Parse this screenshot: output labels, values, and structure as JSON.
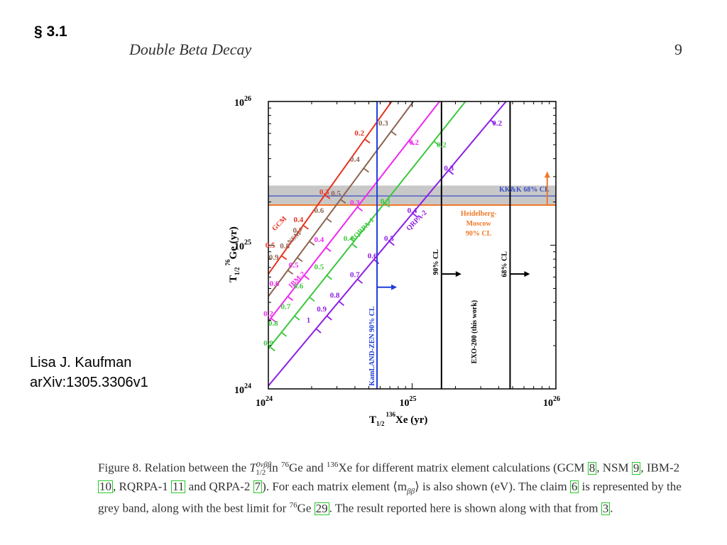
{
  "header": {
    "section": "§ 3.1",
    "running_title": "Double Beta Decay",
    "page_number": "9"
  },
  "author": {
    "name": "Lisa J. Kaufman",
    "arxiv": "arXiv:1305.3306v1"
  },
  "figure": {
    "caption": {
      "p1": "Figure 8.  Relation between the ",
      "t_half": "T",
      "t_sup": "0νββ",
      "t_sub": "1/2",
      "p2": " in ",
      "ge_sup": "76",
      "p3": "Ge and ",
      "xe_sup": "136",
      "p4": "Xe for different matrix element calculations (GCM ",
      "r8": "8",
      "p5": ", NSM ",
      "r9": "9",
      "p6": ", IBM-2 ",
      "r10": "10",
      "p7": ", RQRPA-1 ",
      "r11": "11",
      "p8": " and QRPA-2 ",
      "r7": "7",
      "p9": "). For each matrix element ⟨m",
      "m_sub": "ββ",
      "p10": "⟩ is also shown (eV). The claim ",
      "r6": "6",
      "p11": " is represented by the grey band, along with the best limit for ",
      "ge_sup2": "76",
      "p12": "Ge ",
      "r29": "29",
      "p13": ". The result reported here is shown along with that from ",
      "r3": "3",
      "p14": "."
    }
  },
  "chart_data": {
    "type": "line",
    "xscale": "log",
    "yscale": "log",
    "xlim": [
      1e+24,
      1e+26
    ],
    "ylim": [
      1e+24,
      1e+26
    ],
    "xlabel": {
      "t": "T",
      "sub": "1/2",
      "sup": "136",
      "rest": "Xe (yr)"
    },
    "ylabel": {
      "t": "T",
      "sub": "1/2",
      "sup": "76",
      "rest": "Ge (yr)"
    },
    "x_ticks": [
      {
        "label": "10",
        "exp": "24"
      },
      {
        "label": "10",
        "exp": "25"
      },
      {
        "label": "10",
        "exp": "26"
      }
    ],
    "y_ticks": [
      {
        "label": "10",
        "exp": "24"
      },
      {
        "label": "10",
        "exp": "25"
      },
      {
        "label": "10",
        "exp": "26"
      }
    ],
    "series": [
      {
        "name": "GCM",
        "color": "#e8321e",
        "points": [
          [
            1e+24,
            6.3e+24
          ],
          [
            7.2e+24,
            1e+26
          ]
        ],
        "labels": [
          {
            "text": "0.2",
            "x": 4.3e+24,
            "y": 5.8e+25
          },
          {
            "text": "0.3",
            "x": 2.45e+24,
            "y": 2.25e+25
          },
          {
            "text": "0.4",
            "x": 1.62e+24,
            "y": 1.45e+25
          },
          {
            "text": "0.5",
            "x": 1.03e+24,
            "y": 9.6e+24
          }
        ]
      },
      {
        "name": "NSM",
        "color": "#8b6450",
        "points": [
          [
            1e+24,
            4.4e+24
          ],
          [
            1.02e+25,
            1e+26
          ]
        ],
        "labels": [
          {
            "text": "0.3",
            "x": 6.3e+24,
            "y": 6.8e+25
          },
          {
            "text": "0.4",
            "x": 4e+24,
            "y": 3.8e+25
          },
          {
            "text": "0.5",
            "x": 2.95e+24,
            "y": 2.2e+25
          },
          {
            "text": "0.6",
            "x": 2.25e+24,
            "y": 1.68e+25
          },
          {
            "text": "0.7",
            "x": 1.6e+24,
            "y": 1.22e+25
          },
          {
            "text": "0.8",
            "x": 1.3e+24,
            "y": 9.5e+24
          },
          {
            "text": "0.9",
            "x": 1.09e+24,
            "y": 7.9e+24
          }
        ]
      },
      {
        "name": "IBM-2",
        "color": "#f028f0",
        "points": [
          [
            1e+24,
            2.95e+24
          ],
          [
            1.55e+25,
            1e+26
          ]
        ],
        "labels": [
          {
            "text": "0.2",
            "x": 1.03e+25,
            "y": 5e+25
          },
          {
            "text": "0.3",
            "x": 4e+24,
            "y": 1.9e+25
          },
          {
            "text": "0.4",
            "x": 2.25e+24,
            "y": 1.05e+25
          },
          {
            "text": "0.5",
            "x": 1.5e+24,
            "y": 7e+24
          },
          {
            "text": "0.6",
            "x": 1.1e+24,
            "y": 5.2e+24
          },
          {
            "text": "0.2",
            "x": 1e+24,
            "y": 3.2e+24
          }
        ]
      },
      {
        "name": "RQRPA-1",
        "color": "#3cc83c",
        "points": [
          [
            1e+24,
            1.9e+24
          ],
          [
            2.35e+25,
            1e+26
          ]
        ],
        "labels": [
          {
            "text": "0.2",
            "x": 1.6e+25,
            "y": 4.8e+25
          },
          {
            "text": "0.3",
            "x": 6.5e+24,
            "y": 1.95e+25
          },
          {
            "text": "0.4",
            "x": 3.6e+24,
            "y": 1.07e+25
          },
          {
            "text": "0.5",
            "x": 2.25e+24,
            "y": 6.8e+24
          },
          {
            "text": "0.6",
            "x": 1.62e+24,
            "y": 5e+24
          },
          {
            "text": "0.7",
            "x": 1.32e+24,
            "y": 3.6e+24
          },
          {
            "text": "0.8",
            "x": 1.08e+24,
            "y": 2.75e+24
          },
          {
            "text": "0.9",
            "x": 1e+24,
            "y": 2e+24
          }
        ]
      },
      {
        "name": "QRPA-2",
        "color": "#8c1ee6",
        "points": [
          [
            1e+24,
            1.05e+24
          ],
          [
            4.5e+25,
            1e+26
          ]
        ],
        "labels": [
          {
            "text": "0.2",
            "x": 3.9e+25,
            "y": 6.8e+25
          },
          {
            "text": "0.3",
            "x": 1.8e+25,
            "y": 3.3e+25
          },
          {
            "text": "0.4",
            "x": 1e+25,
            "y": 1.68e+25
          },
          {
            "text": "0.5",
            "x": 6.9e+24,
            "y": 1.07e+25
          },
          {
            "text": "0.6",
            "x": 5.3e+24,
            "y": 8.1e+24
          },
          {
            "text": "0.7",
            "x": 4e+24,
            "y": 6e+24
          },
          {
            "text": "0.8",
            "x": 2.9e+24,
            "y": 4.3e+24
          },
          {
            "text": "0.9",
            "x": 2.35e+24,
            "y": 3.45e+24
          },
          {
            "text": "1",
            "x": 1.9e+24,
            "y": 2.9e+24
          }
        ]
      }
    ],
    "series_labels": [
      {
        "text": "GCM",
        "x": 1.22e+24,
        "y": 1.38e+25
      },
      {
        "text": "NSM",
        "x": 1.55e+24,
        "y": 1.1e+25
      },
      {
        "text": "IBM-2",
        "x": 1.62e+24,
        "y": 5.6e+24
      },
      {
        "text": "RQRPA-1",
        "x": 4.6e+24,
        "y": 1.25e+25
      },
      {
        "text": "QRPA-2",
        "x": 1.1e+25,
        "y": 1.45e+25
      }
    ],
    "band": {
      "label": "KK&K 68% CL",
      "y_low": 1.9e+25,
      "y_high": 2.6e+25,
      "center": 2.2e+25,
      "fill": "#c8c8c8",
      "line_color": "#3c50c8"
    },
    "horizontal_limit": {
      "label_lines": [
        "Heidelberg-",
        "Moscow",
        "90% CL"
      ],
      "y": 1.9e+25,
      "color": "#f07828"
    },
    "vertical_limits": [
      {
        "label": "KamLAND-ZEN 90% CL",
        "x": 5.7e+24,
        "color": "#1e3cdc"
      },
      {
        "label": "90% CL",
        "x": 1.6e+25,
        "color": "#000000"
      },
      {
        "label": "68% CL",
        "x": 4.8e+25,
        "color": "#000000"
      }
    ],
    "result_label": "EXO-200 (this work)"
  }
}
